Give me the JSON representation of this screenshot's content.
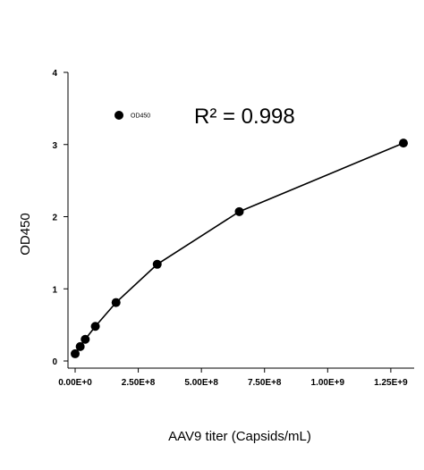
{
  "chart_data": {
    "type": "line",
    "xlabel": "AAV9 titer (Capsids/mL)",
    "ylabel": "OD450",
    "xlim": [
      0,
      1300000000
    ],
    "ylim": [
      0,
      4
    ],
    "x_ticks": [
      0,
      250000000,
      500000000,
      750000000,
      1000000000,
      1250000000
    ],
    "x_tick_labels": [
      "0.00E+0",
      "2.50E+8",
      "5.00E+8",
      "7.50E+8",
      "1.00E+9",
      "1.25E+9"
    ],
    "y_ticks": [
      0,
      1,
      2,
      3,
      4
    ],
    "y_tick_labels": [
      "0",
      "1",
      "2",
      "3",
      "4"
    ],
    "annotation": "R² = 0.998",
    "legend": {
      "position": "top-left"
    },
    "series": [
      {
        "name": "OD450",
        "marker": "circle",
        "color": "#000000",
        "x": [
          0,
          20000000,
          40000000,
          80000000,
          162000000,
          325000000,
          650000000,
          1300000000
        ],
        "y": [
          0.1,
          0.2,
          0.3,
          0.48,
          0.81,
          1.34,
          2.07,
          3.02
        ]
      }
    ]
  }
}
